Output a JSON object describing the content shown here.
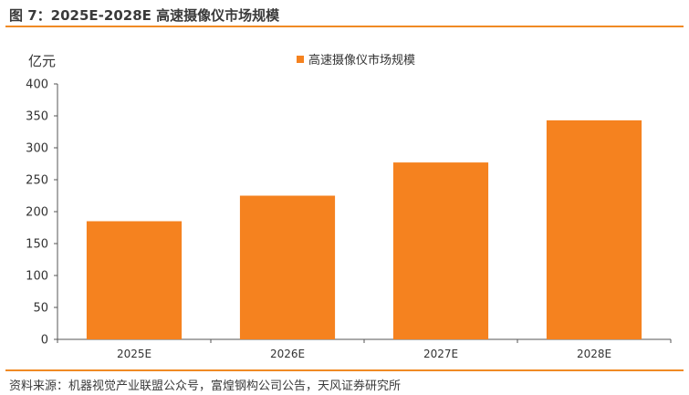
{
  "figure": {
    "title": "图 7：2025E-2028E 高速摄像仪市场规模",
    "source": "资料来源：机器视觉产业联盟公众号，富煌钢构公司公告，天风证券研究所"
  },
  "colors": {
    "accent": "#f08a24",
    "bar": "#f5821f",
    "axis": "#555555",
    "text": "#333333"
  },
  "chart_data": {
    "type": "bar",
    "categories": [
      "2025E",
      "2026E",
      "2027E",
      "2028E"
    ],
    "series": [
      {
        "name": "高速摄像仪市场规模",
        "values": [
          185,
          225,
          277,
          343
        ]
      }
    ],
    "ylabel": "亿元",
    "ylim": [
      0,
      400
    ],
    "yticks": [
      0,
      50,
      100,
      150,
      200,
      250,
      300,
      350,
      400
    ],
    "grid": false,
    "legend_position": "top-center"
  }
}
